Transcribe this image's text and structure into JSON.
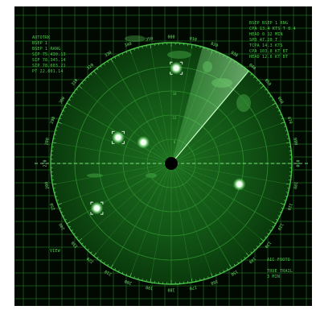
{
  "hud": {
    "top_left": [
      "AUTOTRK",
      "BSEP 1",
      "BSEP 1 RANG",
      "SIP 75.430.13",
      "SIP 78.345.14",
      "SIP 78.603.21",
      "PT 22.801.14"
    ],
    "top_right": [
      "BSEP BSEP 1 RNG",
      "CPA  13.4 KTS T 8.4",
      "HEAD  0 12 MIN",
      "SPD  47.20 T",
      "TCPA  14.3 KTS",
      "CPA  103.8 KT BT",
      "HEAD  12.6 KT BT"
    ],
    "bottom_left": [
      "VIEW"
    ],
    "bottom_right": [
      "AIC FOOTO",
      "TRUE TRAIL",
      "3 MIN"
    ]
  },
  "bearings": [
    "000",
    "010",
    "020",
    "030",
    "040",
    "050",
    "060",
    "070",
    "080",
    "090",
    "100",
    "110",
    "120",
    "130",
    "140",
    "150",
    "160",
    "170",
    "180",
    "190",
    "200",
    "210",
    "220",
    "230",
    "240",
    "250",
    "260",
    "270",
    "280",
    "290",
    "300",
    "310",
    "320",
    "330",
    "340",
    "350"
  ],
  "range_labels": [
    "6",
    "12",
    "18",
    "24"
  ],
  "sweep": {
    "heading_deg": 40,
    "width_deg": 25
  },
  "contacts": [
    {
      "name": "contact-north",
      "bearing_deg": 3,
      "range_frac": 0.79,
      "boxed": true
    },
    {
      "name": "contact-west",
      "bearing_deg": 296,
      "range_frac": 0.49,
      "boxed": true
    },
    {
      "name": "contact-northwest",
      "bearing_deg": 307,
      "range_frac": 0.29,
      "boxed": false
    },
    {
      "name": "contact-east",
      "bearing_deg": 107,
      "range_frac": 0.59,
      "boxed": false
    },
    {
      "name": "contact-southwest",
      "bearing_deg": 239,
      "range_frac": 0.72,
      "boxed": true
    }
  ],
  "colors": {
    "background": "#020802",
    "grid": "#1f6b1f",
    "ring": "#2e8f2e",
    "scope_fill": "#0f4a12",
    "sweep": "#7cff7c",
    "contact": "#f2fff2",
    "center": "#000000"
  }
}
